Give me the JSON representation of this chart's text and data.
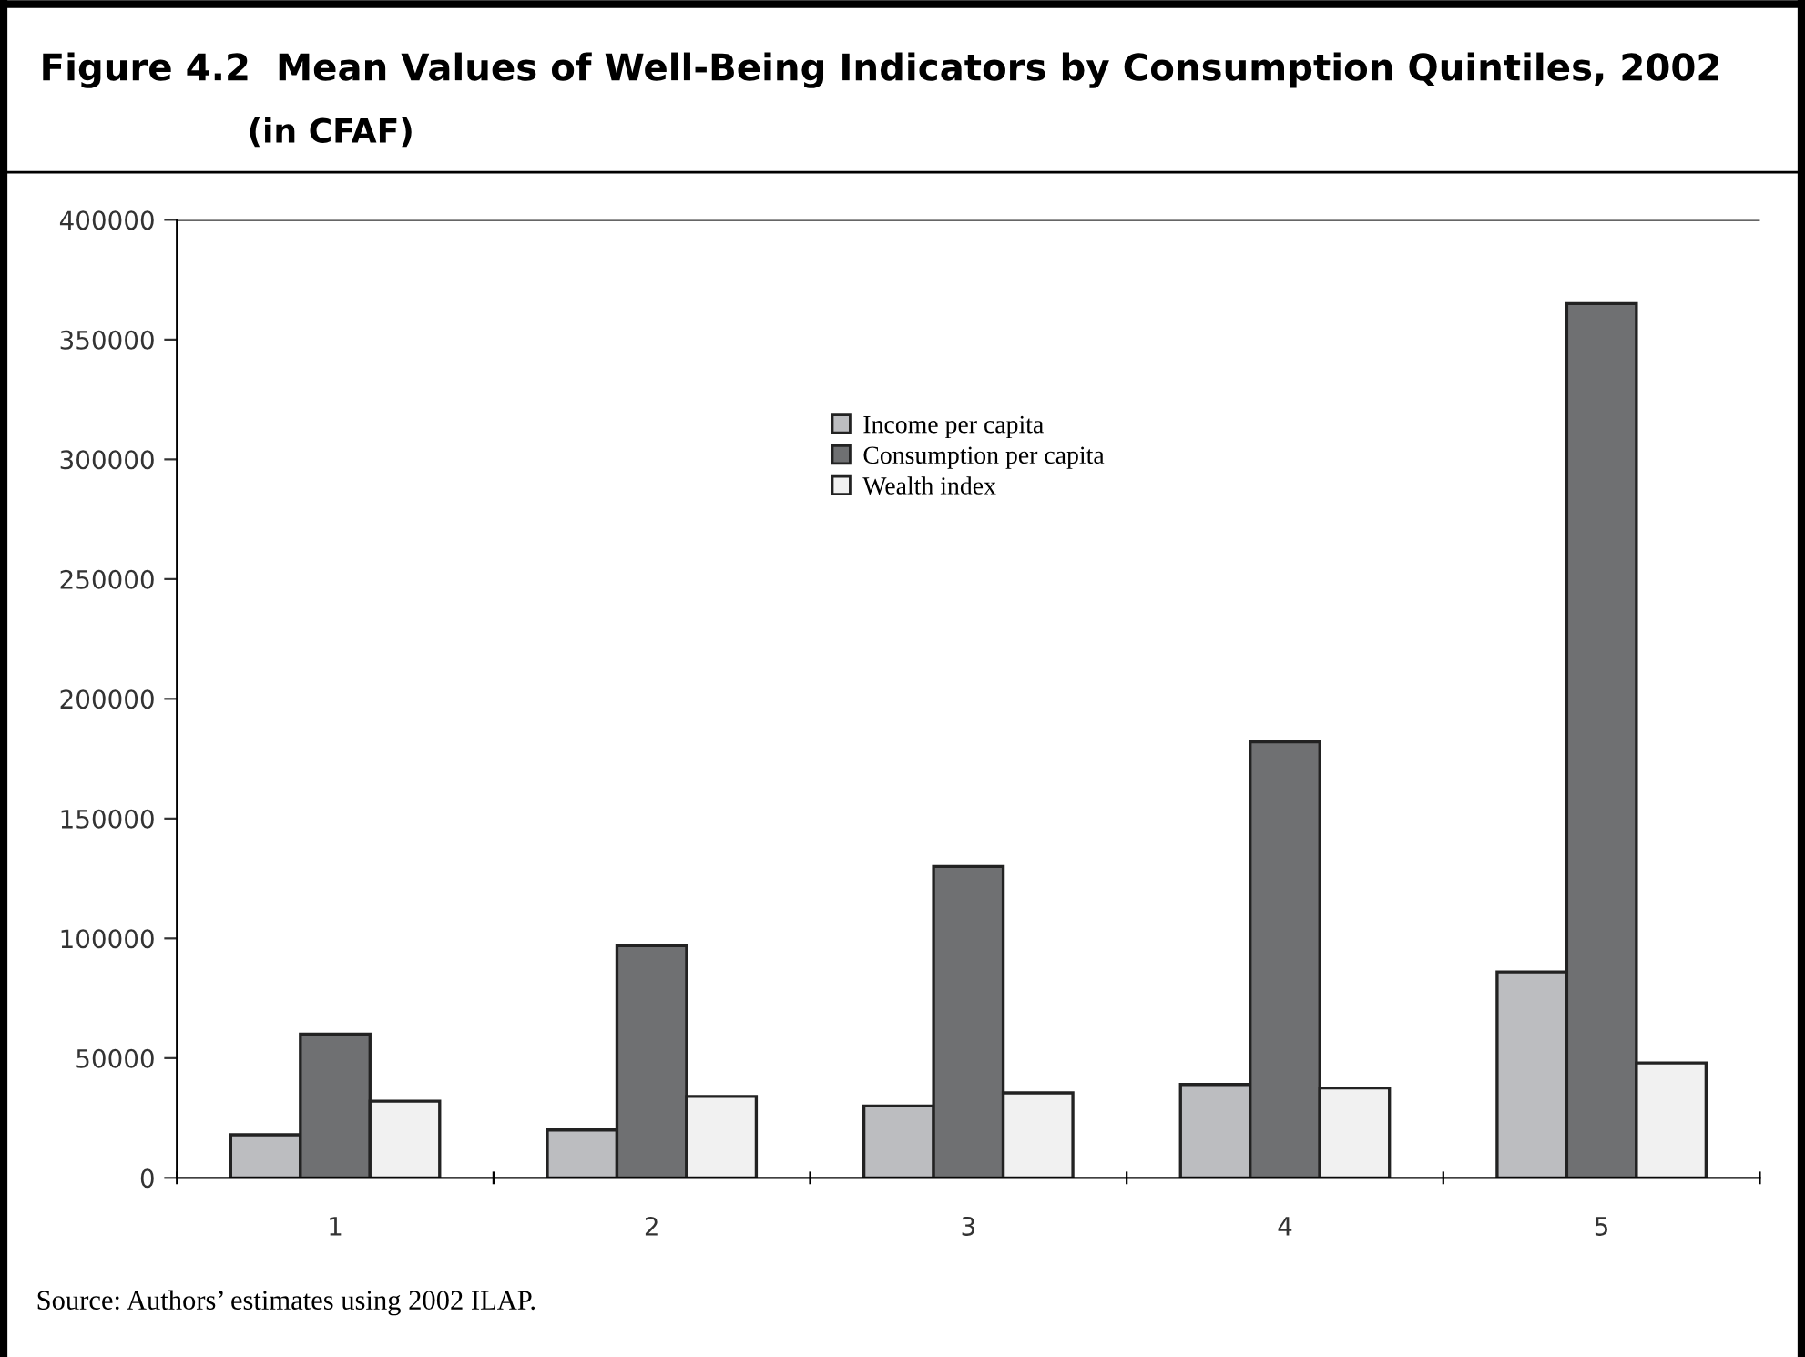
{
  "chart_data": {
    "type": "bar",
    "title": "Figure 4.2  Mean Values of Well-Being Indicators by Consumption Quintiles, 2002",
    "subtitle": "(in CFAF)",
    "categories": [
      "1",
      "2",
      "3",
      "4",
      "5"
    ],
    "series": [
      {
        "name": "Income per capita",
        "color": "#bcbdc0",
        "values": [
          18000,
          20000,
          30000,
          39000,
          86000
        ]
      },
      {
        "name": "Consumption per capita",
        "color": "#6f7072",
        "values": [
          60000,
          97000,
          130000,
          182000,
          365000
        ]
      },
      {
        "name": "Wealth index",
        "color": "#f1f1f1",
        "values": [
          32000,
          34000,
          35500,
          37500,
          48000
        ]
      }
    ],
    "ylim": [
      0,
      400000
    ],
    "yticks": [
      0,
      50000,
      100000,
      150000,
      200000,
      250000,
      300000,
      350000,
      400000
    ],
    "grid": false,
    "legend": "top",
    "annotations": [
      "Source: Authors’ estimates using 2002 ILAP."
    ]
  }
}
